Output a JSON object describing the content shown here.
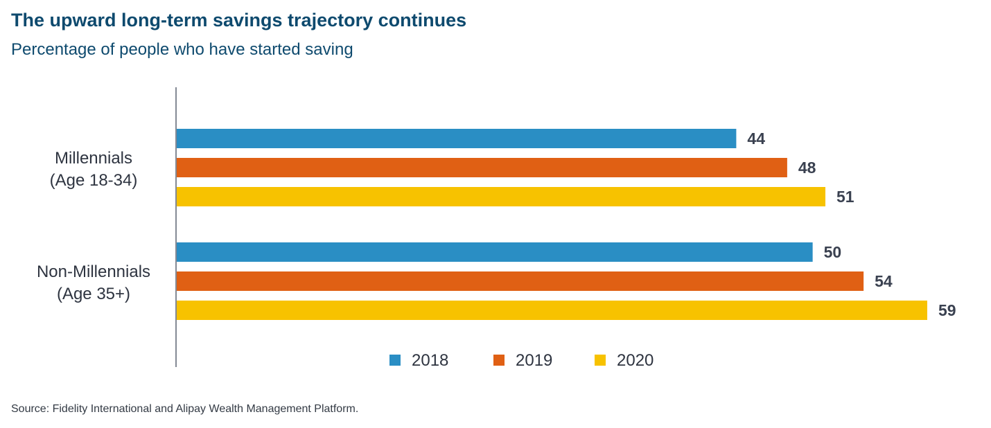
{
  "title": "The upward long-term savings trajectory continues",
  "subtitle": "Percentage of people who have started saving",
  "source": "Source: Fidelity International and Alipay Wealth Management Platform.",
  "chart_data": {
    "type": "bar",
    "orientation": "horizontal",
    "categories": [
      {
        "line1": "Millennials",
        "line2": "(Age 18-34)"
      },
      {
        "line1": "Non-Millennials",
        "line2": "(Age 35+)"
      }
    ],
    "series": [
      {
        "name": "2018",
        "color": "#2a8ec4",
        "values": [
          44,
          50
        ]
      },
      {
        "name": "2019",
        "color": "#e06014",
        "values": [
          48,
          54
        ]
      },
      {
        "name": "2020",
        "color": "#f7c200",
        "values": [
          51,
          59
        ]
      }
    ],
    "xlim": [
      0,
      59
    ],
    "grid": false,
    "legend_position": "bottom",
    "data_labels": true
  }
}
